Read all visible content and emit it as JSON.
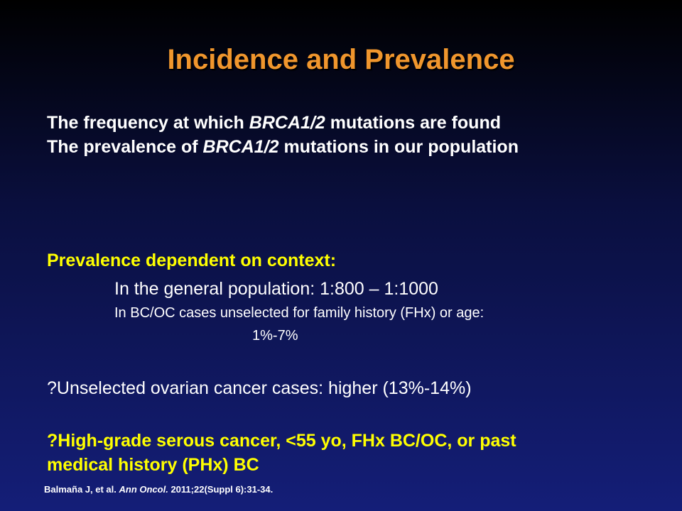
{
  "slide": {
    "title": "Incidence and Prevalence",
    "line1_pre": "The frequency at which ",
    "line1_em": "BRCA1/2",
    "line1_post": " mutations are found",
    "line2_pre": "The prevalence of ",
    "line2_em": "BRCA1/2",
    "line2_post": "  mutations in our population",
    "prevalence_heading": "Prevalence dependent on context:",
    "general_population": "In the general population: 1:800 – 1:1000",
    "unselected_cases": "In BC/OC cases unselected for family history (FHx) or age:",
    "unselected_cases_value": "1%-7%",
    "ovarian_line": "?Unselected ovarian cancer cases: higher (13%-14%)",
    "highgrade_line1": "?High-grade serous cancer, <55 yo, FHx BC/OC, or past",
    "highgrade_line2": "medical history (PHx) BC",
    "citation_authors": "Balmaña J, et al. ",
    "citation_journal": "Ann Oncol.",
    "citation_rest": " 2011;22(Suppl 6):31-34."
  }
}
